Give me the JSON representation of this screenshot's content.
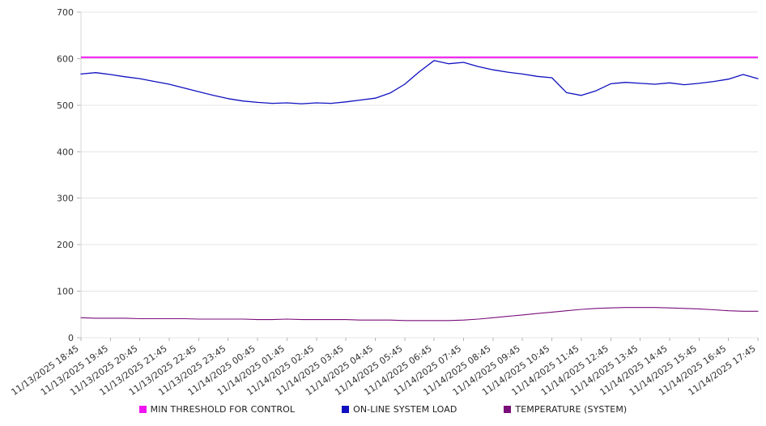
{
  "chart_data": {
    "type": "line",
    "title": "",
    "xlabel": "",
    "ylabel": "",
    "grid": true,
    "legend_position": "bottom",
    "background_color": "#ffffff",
    "gridline_color": "#e4e4e4",
    "axis_line_color": "#d6d6d6",
    "tick_color": "#b5b5b5",
    "axis_text_color": "#333333",
    "y_axis": {
      "min": 0,
      "max": 700,
      "step": 100,
      "ticks": [
        0,
        100,
        200,
        300,
        400,
        500,
        600,
        700
      ]
    },
    "x_points_per_tick": 2,
    "x_tick_labels": [
      "11/13/2025 18:45",
      "11/13/2025 19:45",
      "11/13/2025 20:45",
      "11/13/2025 21:45",
      "11/13/2025 22:45",
      "11/13/2025 23:45",
      "11/14/2025 00:45",
      "11/14/2025 01:45",
      "11/14/2025 02:45",
      "11/14/2025 03:45",
      "11/14/2025 04:45",
      "11/14/2025 05:45",
      "11/14/2025 06:45",
      "11/14/2025 07:45",
      "11/14/2025 08:45",
      "11/14/2025 09:45",
      "11/14/2025 10:45",
      "11/14/2025 11:45",
      "11/14/2025 12:45",
      "11/14/2025 13:45",
      "11/14/2025 14:45",
      "11/14/2025 15:45",
      "11/14/2025 16:45",
      "11/14/2025 17:45"
    ],
    "series": [
      {
        "name": "MIN THRESHOLD FOR CONTROL",
        "color": "#f014f0",
        "type": "constant",
        "value": 603,
        "line_width": 2
      },
      {
        "name": "ON-LINE SYSTEM LOAD",
        "color": "#1010c0",
        "type": "line",
        "line_width": 1.3,
        "values": [
          567,
          570,
          566,
          561,
          557,
          551,
          545,
          537,
          529,
          521,
          514,
          509,
          506,
          504,
          505,
          503,
          505,
          504,
          507,
          511,
          515,
          526,
          545,
          572,
          596,
          589,
          592,
          583,
          576,
          571,
          567,
          562,
          559,
          527,
          521,
          531,
          546,
          549,
          547,
          545,
          548,
          544,
          547,
          551,
          556,
          566,
          557
        ]
      },
      {
        "name": "TEMPERATURE (SYSTEM)",
        "color": "#7a0e7a",
        "type": "line",
        "line_width": 1.1,
        "values": [
          43,
          42,
          42,
          42,
          41,
          41,
          41,
          41,
          40,
          40,
          40,
          40,
          39,
          39,
          40,
          39,
          39,
          39,
          39,
          38,
          38,
          38,
          37,
          37,
          37,
          37,
          38,
          40,
          43,
          46,
          49,
          52,
          55,
          58,
          61,
          63,
          64,
          65,
          65,
          65,
          64,
          63,
          62,
          60,
          58,
          57,
          57
        ]
      }
    ]
  },
  "legend": {
    "items": [
      {
        "label": "MIN THRESHOLD FOR CONTROL",
        "color": "#f014f0"
      },
      {
        "label": "ON-LINE SYSTEM LOAD",
        "color": "#1010c0"
      },
      {
        "label": "TEMPERATURE (SYSTEM)",
        "color": "#7a0e7a"
      }
    ]
  }
}
